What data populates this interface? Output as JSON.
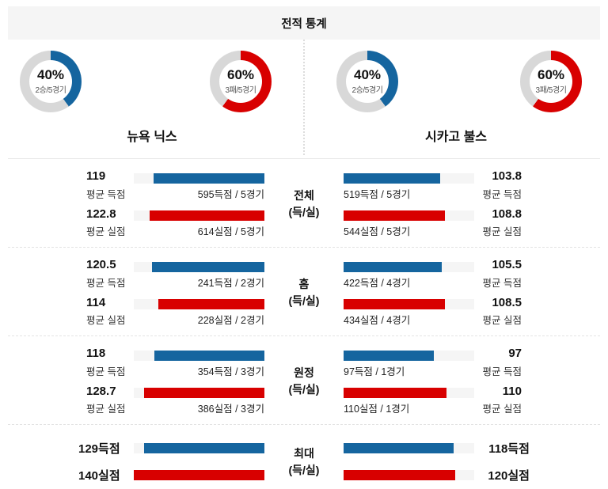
{
  "header": {
    "title": "전적 통계"
  },
  "colors": {
    "blue": "#15659f",
    "red": "#d80000",
    "donut_gray": "#d8d8d8",
    "track": "#f5f5f5"
  },
  "max_scale": 140,
  "teams": [
    {
      "name": "뉴욕 닉스",
      "win": {
        "percent": 40,
        "label": "40%",
        "sub": "2승/5경기",
        "color": "blue"
      },
      "loss": {
        "percent": 60,
        "label": "60%",
        "sub": "3패/5경기",
        "color": "red"
      }
    },
    {
      "name": "시카고 불스",
      "win": {
        "percent": 40,
        "label": "40%",
        "sub": "2승/5경기",
        "color": "blue"
      },
      "loss": {
        "percent": 60,
        "label": "60%",
        "sub": "3패/5경기",
        "color": "red"
      }
    }
  ],
  "sections": [
    {
      "label1": "전체",
      "label2": "(득/실)",
      "left": {
        "score": {
          "num": "119",
          "value": 119,
          "caption": "평균 득점",
          "bar_text": "595득점 / 5경기",
          "color": "blue"
        },
        "concede": {
          "num": "122.8",
          "value": 122.8,
          "caption": "평균 실점",
          "bar_text": "614실점 / 5경기",
          "color": "red"
        }
      },
      "right": {
        "score": {
          "num": "103.8",
          "value": 103.8,
          "caption": "평균 득점",
          "bar_text": "519득점 / 5경기",
          "color": "blue"
        },
        "concede": {
          "num": "108.8",
          "value": 108.8,
          "caption": "평균 실점",
          "bar_text": "544실점 / 5경기",
          "color": "red"
        }
      }
    },
    {
      "label1": "홈",
      "label2": "(득/실)",
      "left": {
        "score": {
          "num": "120.5",
          "value": 120.5,
          "caption": "평균 득점",
          "bar_text": "241득점 / 2경기",
          "color": "blue"
        },
        "concede": {
          "num": "114",
          "value": 114,
          "caption": "평균 실점",
          "bar_text": "228실점 / 2경기",
          "color": "red"
        }
      },
      "right": {
        "score": {
          "num": "105.5",
          "value": 105.5,
          "caption": "평균 득점",
          "bar_text": "422득점 / 4경기",
          "color": "blue"
        },
        "concede": {
          "num": "108.5",
          "value": 108.5,
          "caption": "평균 실점",
          "bar_text": "434실점 / 4경기",
          "color": "red"
        }
      }
    },
    {
      "label1": "원정",
      "label2": "(득/실)",
      "left": {
        "score": {
          "num": "118",
          "value": 118,
          "caption": "평균 득점",
          "bar_text": "354득점 / 3경기",
          "color": "blue"
        },
        "concede": {
          "num": "128.7",
          "value": 128.7,
          "caption": "평균 실점",
          "bar_text": "386실점 / 3경기",
          "color": "red"
        }
      },
      "right": {
        "score": {
          "num": "97",
          "value": 97,
          "caption": "평균 득점",
          "bar_text": "97득점 / 1경기",
          "color": "blue"
        },
        "concede": {
          "num": "110",
          "value": 110,
          "caption": "평균 실점",
          "bar_text": "110실점 / 1경기",
          "color": "red"
        }
      }
    },
    {
      "label1": "최대",
      "label2": "(득/실)",
      "left": {
        "score": {
          "label": "129득점",
          "value": 129,
          "color": "blue"
        },
        "concede": {
          "label": "140실점",
          "value": 140,
          "color": "red"
        }
      },
      "right": {
        "score": {
          "label": "118득점",
          "value": 118,
          "color": "blue"
        },
        "concede": {
          "label": "120실점",
          "value": 120,
          "color": "red"
        }
      }
    }
  ],
  "chart_data": [
    {
      "type": "pie",
      "title": "승패 비율 도넛 (시작각 12시, 시계방향)",
      "donuts": [
        {
          "team": "뉴욕 닉스",
          "metric": "승률",
          "percent": 40,
          "rest": 60,
          "center_label": "40%",
          "sub_label": "2승/5경기",
          "color": "#15659f"
        },
        {
          "team": "뉴욕 닉스",
          "metric": "패율",
          "percent": 60,
          "rest": 40,
          "center_label": "60%",
          "sub_label": "3패/5경기",
          "color": "#d80000"
        },
        {
          "team": "시카고 불스",
          "metric": "승률",
          "percent": 40,
          "rest": 60,
          "center_label": "40%",
          "sub_label": "2승/5경기",
          "color": "#15659f"
        },
        {
          "team": "시카고 불스",
          "metric": "패율",
          "percent": 60,
          "rest": 40,
          "center_label": "60%",
          "sub_label": "3패/5경기",
          "color": "#d80000"
        }
      ]
    },
    {
      "type": "bar",
      "title": "전적 통계",
      "xlim": [
        0,
        140
      ],
      "legend_position": "none",
      "grid": false,
      "categories": [
        "전체",
        "홈",
        "원정",
        "최대"
      ],
      "series": [
        {
          "name": "뉴욕 닉스 평균 득점",
          "color": "#15659f",
          "values": [
            119,
            120.5,
            118,
            129
          ]
        },
        {
          "name": "뉴욕 닉스 평균 실점",
          "color": "#d80000",
          "values": [
            122.8,
            114,
            128.7,
            140
          ]
        },
        {
          "name": "시카고 불스 평균 득점",
          "color": "#15659f",
          "values": [
            103.8,
            105.5,
            97,
            118
          ]
        },
        {
          "name": "시카고 불스 평균 실점",
          "color": "#d80000",
          "values": [
            108.8,
            108.5,
            110,
            120
          ]
        }
      ],
      "annotations": [
        "595득점 / 5경기",
        "614실점 / 5경기",
        "519득점 / 5경기",
        "544실점 / 5경기",
        "241득점 / 2경기",
        "228실점 / 2경기",
        "422득점 / 4경기",
        "434실점 / 4경기",
        "354득점 / 3경기",
        "386실점 / 3경기",
        "97득점 / 1경기",
        "110실점 / 1경기",
        "129득점",
        "140실점",
        "118득점",
        "120실점"
      ]
    }
  ]
}
